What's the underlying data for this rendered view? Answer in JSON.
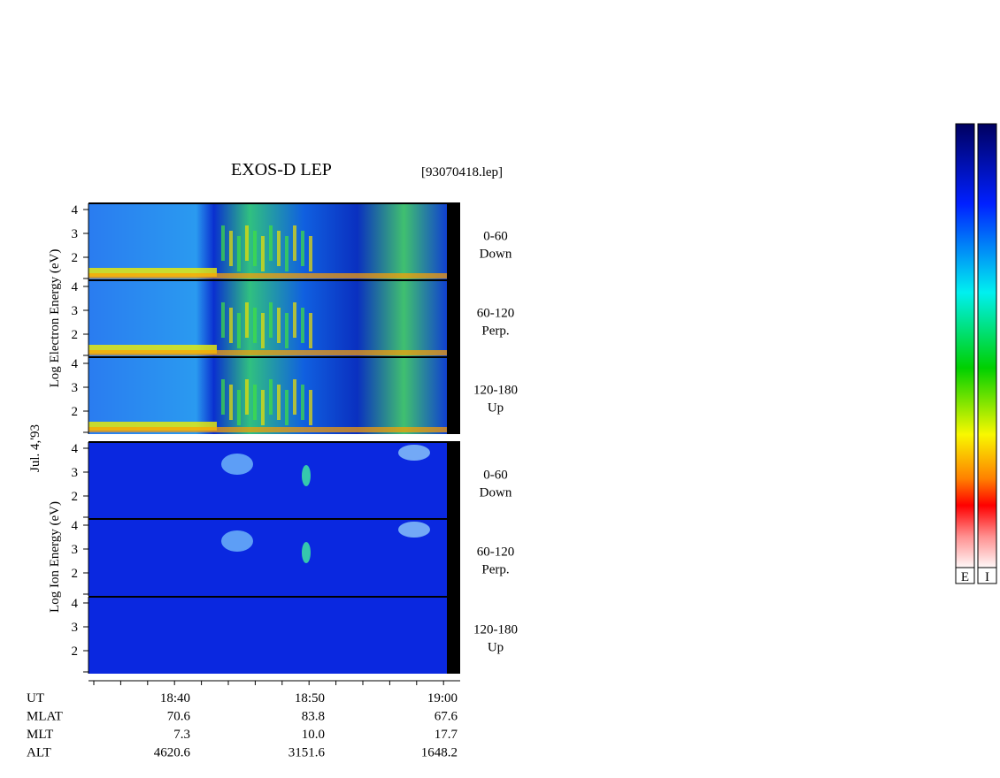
{
  "header": {
    "title": "EXOS-D LEP",
    "file": "[93070418.lep]"
  },
  "date": "Jul. 4,'93",
  "electron_axis_label": "Log Electron Energy (eV)",
  "ion_axis_label": "Log Ion Energy (eV)",
  "energy_ticks": [
    "4",
    "3",
    "2"
  ],
  "panels": [
    {
      "range": "0-60",
      "direction": "Down"
    },
    {
      "range": "60-120",
      "direction": "Perp."
    },
    {
      "range": "120-180",
      "direction": "Up"
    },
    {
      "range": "0-60",
      "direction": "Down"
    },
    {
      "range": "60-120",
      "direction": "Perp."
    },
    {
      "range": "120-180",
      "direction": "Up"
    }
  ],
  "ephemeris": {
    "labels": [
      "UT",
      "MLAT",
      "MLT",
      "ALT"
    ],
    "columns": [
      [
        "18:40",
        "70.6",
        "7.3",
        "4620.6"
      ],
      [
        "18:50",
        "83.8",
        "10.0",
        "3151.6"
      ],
      [
        "19:00",
        "67.6",
        "17.7",
        "1648.2"
      ]
    ]
  },
  "colorbars": [
    "E",
    "I"
  ]
}
